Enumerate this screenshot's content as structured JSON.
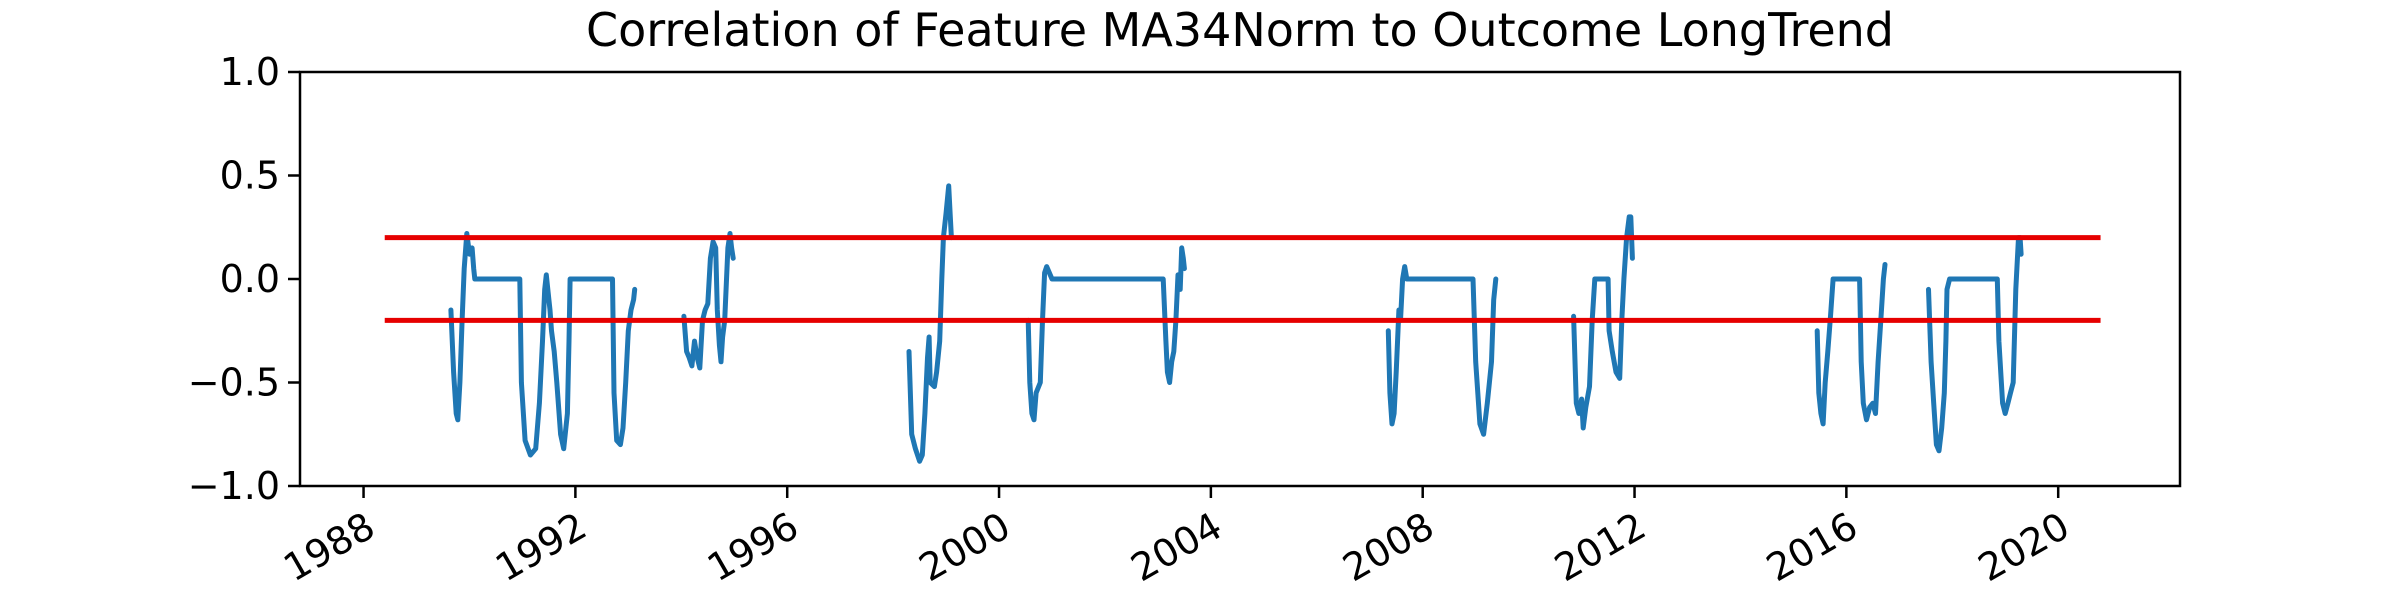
{
  "chart_data": {
    "type": "line",
    "title": "Correlation of Feature MA34Norm to Outcome LongTrend",
    "xlabel": "",
    "ylabel": "",
    "x_is_date": true,
    "xlim": [
      1986.8,
      2022.3
    ],
    "ylim": [
      -1.0,
      1.0
    ],
    "x_ticks": [
      1988,
      1992,
      1996,
      2000,
      2004,
      2008,
      2012,
      2016,
      2020
    ],
    "x_tick_labels": [
      "1988",
      "1992",
      "1996",
      "2000",
      "2004",
      "2008",
      "2012",
      "2016",
      "2020"
    ],
    "y_ticks": [
      -1.0,
      -0.5,
      0.0,
      0.5,
      1.0
    ],
    "y_tick_labels": [
      "−1.0",
      "−0.5",
      "0.0",
      "0.5",
      "1.0"
    ],
    "grid": false,
    "thresholds": [
      {
        "y": 0.2,
        "x": [
          1988.4,
          2020.8
        ],
        "color": "#e60000"
      },
      {
        "y": -0.2,
        "x": [
          1988.4,
          2020.8
        ],
        "color": "#e60000"
      }
    ],
    "series_color": "#1f77b4",
    "segments": [
      [
        [
          1989.65,
          -0.15
        ],
        [
          1989.7,
          -0.45
        ],
        [
          1989.75,
          -0.65
        ],
        [
          1989.78,
          -0.68
        ],
        [
          1989.82,
          -0.5
        ],
        [
          1989.86,
          -0.2
        ],
        [
          1989.9,
          0.05
        ],
        [
          1989.95,
          0.22
        ],
        [
          1990.0,
          0.12
        ],
        [
          1990.05,
          0.15
        ],
        [
          1990.08,
          0.05
        ],
        [
          1990.1,
          0.0
        ],
        [
          1990.3,
          0.0
        ],
        [
          1990.6,
          0.0
        ],
        [
          1990.9,
          0.0
        ],
        [
          1990.95,
          0.0
        ],
        [
          1990.98,
          -0.5
        ],
        [
          1991.05,
          -0.78
        ],
        [
          1991.15,
          -0.85
        ],
        [
          1991.25,
          -0.82
        ],
        [
          1991.32,
          -0.6
        ],
        [
          1991.38,
          -0.3
        ],
        [
          1991.42,
          -0.05
        ],
        [
          1991.45,
          0.02
        ],
        [
          1991.5,
          -0.1
        ],
        [
          1991.52,
          -0.15
        ],
        [
          1991.55,
          -0.25
        ],
        [
          1991.6,
          -0.35
        ],
        [
          1991.65,
          -0.5
        ],
        [
          1991.72,
          -0.75
        ],
        [
          1991.78,
          -0.82
        ],
        [
          1991.85,
          -0.65
        ],
        [
          1991.88,
          -0.3
        ],
        [
          1991.9,
          0.0
        ],
        [
          1992.3,
          0.0
        ],
        [
          1992.6,
          0.0
        ],
        [
          1992.7,
          0.0
        ],
        [
          1992.73,
          -0.55
        ],
        [
          1992.78,
          -0.78
        ],
        [
          1992.85,
          -0.8
        ],
        [
          1992.9,
          -0.72
        ],
        [
          1992.95,
          -0.5
        ],
        [
          1993.0,
          -0.25
        ],
        [
          1993.05,
          -0.15
        ],
        [
          1993.1,
          -0.1
        ],
        [
          1993.12,
          -0.05
        ]
      ],
      [
        [
          1994.05,
          -0.18
        ],
        [
          1994.1,
          -0.35
        ],
        [
          1994.15,
          -0.38
        ],
        [
          1994.2,
          -0.42
        ],
        [
          1994.25,
          -0.3
        ],
        [
          1994.3,
          -0.38
        ],
        [
          1994.35,
          -0.43
        ],
        [
          1994.4,
          -0.2
        ],
        [
          1994.45,
          -0.15
        ],
        [
          1994.5,
          -0.12
        ],
        [
          1994.55,
          0.1
        ],
        [
          1994.6,
          0.18
        ],
        [
          1994.65,
          0.15
        ],
        [
          1994.68,
          -0.15
        ],
        [
          1994.72,
          -0.32
        ],
        [
          1994.75,
          -0.4
        ],
        [
          1994.78,
          -0.28
        ],
        [
          1994.82,
          -0.2
        ],
        [
          1994.88,
          0.15
        ],
        [
          1994.92,
          0.22
        ],
        [
          1994.95,
          0.15
        ],
        [
          1994.98,
          0.1
        ]
      ],
      [
        [
          1998.3,
          -0.35
        ],
        [
          1998.35,
          -0.75
        ],
        [
          1998.42,
          -0.82
        ],
        [
          1998.5,
          -0.88
        ],
        [
          1998.55,
          -0.85
        ],
        [
          1998.6,
          -0.65
        ],
        [
          1998.65,
          -0.38
        ],
        [
          1998.68,
          -0.28
        ],
        [
          1998.7,
          -0.5
        ],
        [
          1998.78,
          -0.52
        ],
        [
          1998.82,
          -0.45
        ],
        [
          1998.88,
          -0.3
        ],
        [
          1998.92,
          0.0
        ],
        [
          1998.95,
          0.2
        ],
        [
          1999.0,
          0.32
        ],
        [
          1999.05,
          0.45
        ],
        [
          1999.08,
          0.3
        ],
        [
          1999.1,
          0.2
        ]
      ],
      [
        [
          2000.55,
          -0.2
        ],
        [
          2000.58,
          -0.5
        ],
        [
          2000.62,
          -0.65
        ],
        [
          2000.66,
          -0.68
        ],
        [
          2000.7,
          -0.55
        ],
        [
          2000.78,
          -0.5
        ],
        [
          2000.82,
          -0.2
        ],
        [
          2000.86,
          0.03
        ],
        [
          2000.9,
          0.06
        ],
        [
          2001.0,
          0.0
        ],
        [
          2001.5,
          0.0
        ],
        [
          2002.0,
          0.0
        ],
        [
          2002.5,
          0.0
        ],
        [
          2003.0,
          0.0
        ],
        [
          2003.1,
          0.0
        ],
        [
          2003.15,
          -0.3
        ],
        [
          2003.18,
          -0.45
        ],
        [
          2003.22,
          -0.5
        ],
        [
          2003.26,
          -0.4
        ],
        [
          2003.3,
          -0.35
        ],
        [
          2003.34,
          -0.2
        ],
        [
          2003.38,
          0.02
        ],
        [
          2003.42,
          -0.05
        ],
        [
          2003.45,
          0.15
        ],
        [
          2003.48,
          0.1
        ],
        [
          2003.5,
          0.05
        ]
      ],
      [
        [
          2007.35,
          -0.25
        ],
        [
          2007.38,
          -0.55
        ],
        [
          2007.42,
          -0.7
        ],
        [
          2007.46,
          -0.65
        ],
        [
          2007.5,
          -0.45
        ],
        [
          2007.55,
          -0.15
        ],
        [
          2007.58,
          -0.2
        ],
        [
          2007.62,
          0.0
        ],
        [
          2007.66,
          0.06
        ],
        [
          2007.7,
          0.0
        ],
        [
          2008.0,
          0.0
        ],
        [
          2008.5,
          0.0
        ],
        [
          2008.95,
          0.0
        ],
        [
          2009.0,
          -0.4
        ],
        [
          2009.08,
          -0.7
        ],
        [
          2009.15,
          -0.75
        ],
        [
          2009.22,
          -0.6
        ],
        [
          2009.26,
          -0.5
        ],
        [
          2009.3,
          -0.4
        ],
        [
          2009.34,
          -0.1
        ],
        [
          2009.38,
          0.0
        ]
      ],
      [
        [
          2010.85,
          -0.18
        ],
        [
          2010.9,
          -0.6
        ],
        [
          2010.95,
          -0.65
        ],
        [
          2011.0,
          -0.58
        ],
        [
          2011.03,
          -0.72
        ],
        [
          2011.08,
          -0.62
        ],
        [
          2011.15,
          -0.52
        ],
        [
          2011.2,
          -0.2
        ],
        [
          2011.25,
          0.0
        ],
        [
          2011.3,
          0.0
        ],
        [
          2011.45,
          0.0
        ],
        [
          2011.5,
          0.0
        ],
        [
          2011.52,
          -0.25
        ],
        [
          2011.58,
          -0.35
        ],
        [
          2011.65,
          -0.45
        ],
        [
          2011.72,
          -0.48
        ],
        [
          2011.76,
          -0.2
        ],
        [
          2011.8,
          0.0
        ],
        [
          2011.85,
          0.2
        ],
        [
          2011.9,
          0.3
        ],
        [
          2011.93,
          0.3
        ],
        [
          2011.96,
          0.1
        ]
      ],
      [
        [
          2015.45,
          -0.25
        ],
        [
          2015.48,
          -0.55
        ],
        [
          2015.52,
          -0.65
        ],
        [
          2015.56,
          -0.7
        ],
        [
          2015.6,
          -0.5
        ],
        [
          2015.65,
          -0.35
        ],
        [
          2015.7,
          -0.18
        ],
        [
          2015.75,
          0.0
        ],
        [
          2016.0,
          0.0
        ],
        [
          2016.25,
          0.0
        ],
        [
          2016.28,
          -0.4
        ],
        [
          2016.32,
          -0.6
        ],
        [
          2016.38,
          -0.68
        ],
        [
          2016.44,
          -0.62
        ],
        [
          2016.5,
          -0.6
        ],
        [
          2016.55,
          -0.65
        ],
        [
          2016.6,
          -0.4
        ],
        [
          2016.65,
          -0.2
        ],
        [
          2016.7,
          0.0
        ],
        [
          2016.73,
          0.07
        ]
      ],
      [
        [
          2017.55,
          -0.05
        ],
        [
          2017.6,
          -0.4
        ],
        [
          2017.65,
          -0.6
        ],
        [
          2017.7,
          -0.8
        ],
        [
          2017.75,
          -0.83
        ],
        [
          2017.8,
          -0.72
        ],
        [
          2017.85,
          -0.55
        ],
        [
          2017.88,
          -0.3
        ],
        [
          2017.9,
          -0.05
        ],
        [
          2017.95,
          0.0
        ],
        [
          2018.2,
          0.0
        ],
        [
          2018.6,
          0.0
        ],
        [
          2018.85,
          0.0
        ],
        [
          2018.88,
          -0.3
        ],
        [
          2018.95,
          -0.6
        ],
        [
          2019.0,
          -0.65
        ],
        [
          2019.05,
          -0.6
        ],
        [
          2019.1,
          -0.55
        ],
        [
          2019.15,
          -0.5
        ],
        [
          2019.2,
          -0.05
        ],
        [
          2019.25,
          0.2
        ],
        [
          2019.28,
          0.2
        ],
        [
          2019.3,
          0.12
        ]
      ]
    ]
  }
}
